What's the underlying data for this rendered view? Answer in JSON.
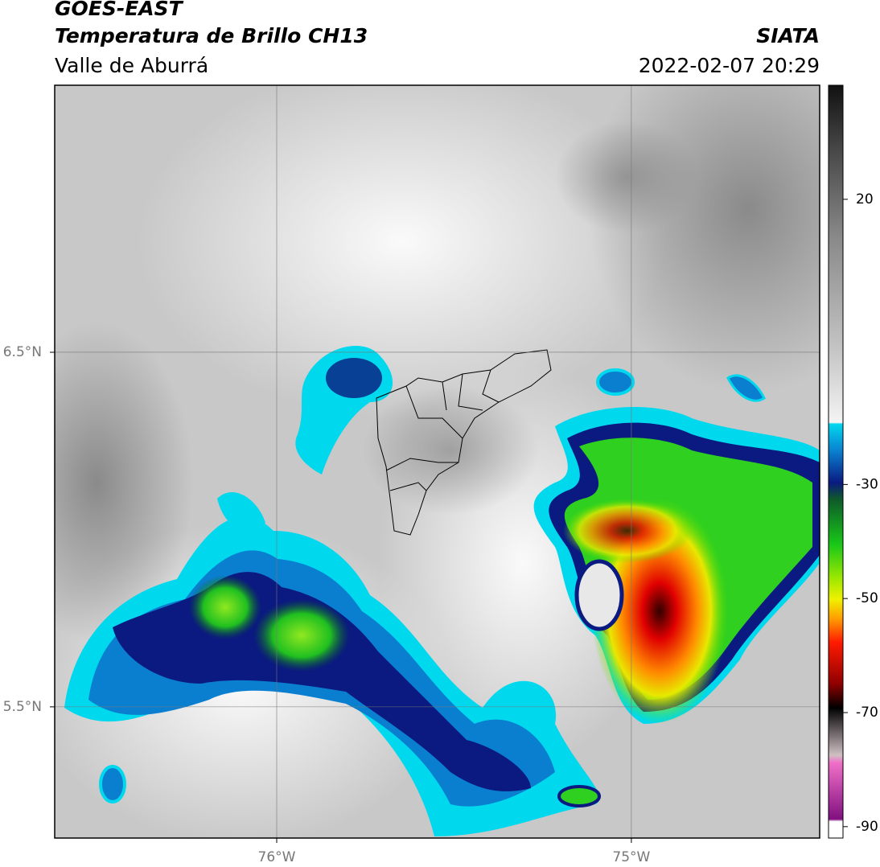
{
  "header": {
    "satellite": "GOES-EAST",
    "title": "Temperatura de Brillo CH13",
    "region": "Valle de Aburrá",
    "agency": "SIATA",
    "datetime": "2022-02-07 20:29"
  },
  "map": {
    "xlim": [
      -76.626,
      -74.469
    ],
    "ylim": [
      5.13,
      7.253
    ],
    "xticks": [
      {
        "value": -76,
        "label": "76°W"
      },
      {
        "value": -75,
        "label": "75°W"
      }
    ],
    "yticks": [
      {
        "value": 6.5,
        "label": "6.5°N"
      },
      {
        "value": 5.5,
        "label": "5.5°N"
      }
    ],
    "grid": true
  },
  "colorbar": {
    "lim": [
      -92,
      40
    ],
    "ticks": [
      20,
      -30,
      -50,
      -70,
      -90
    ]
  }
}
